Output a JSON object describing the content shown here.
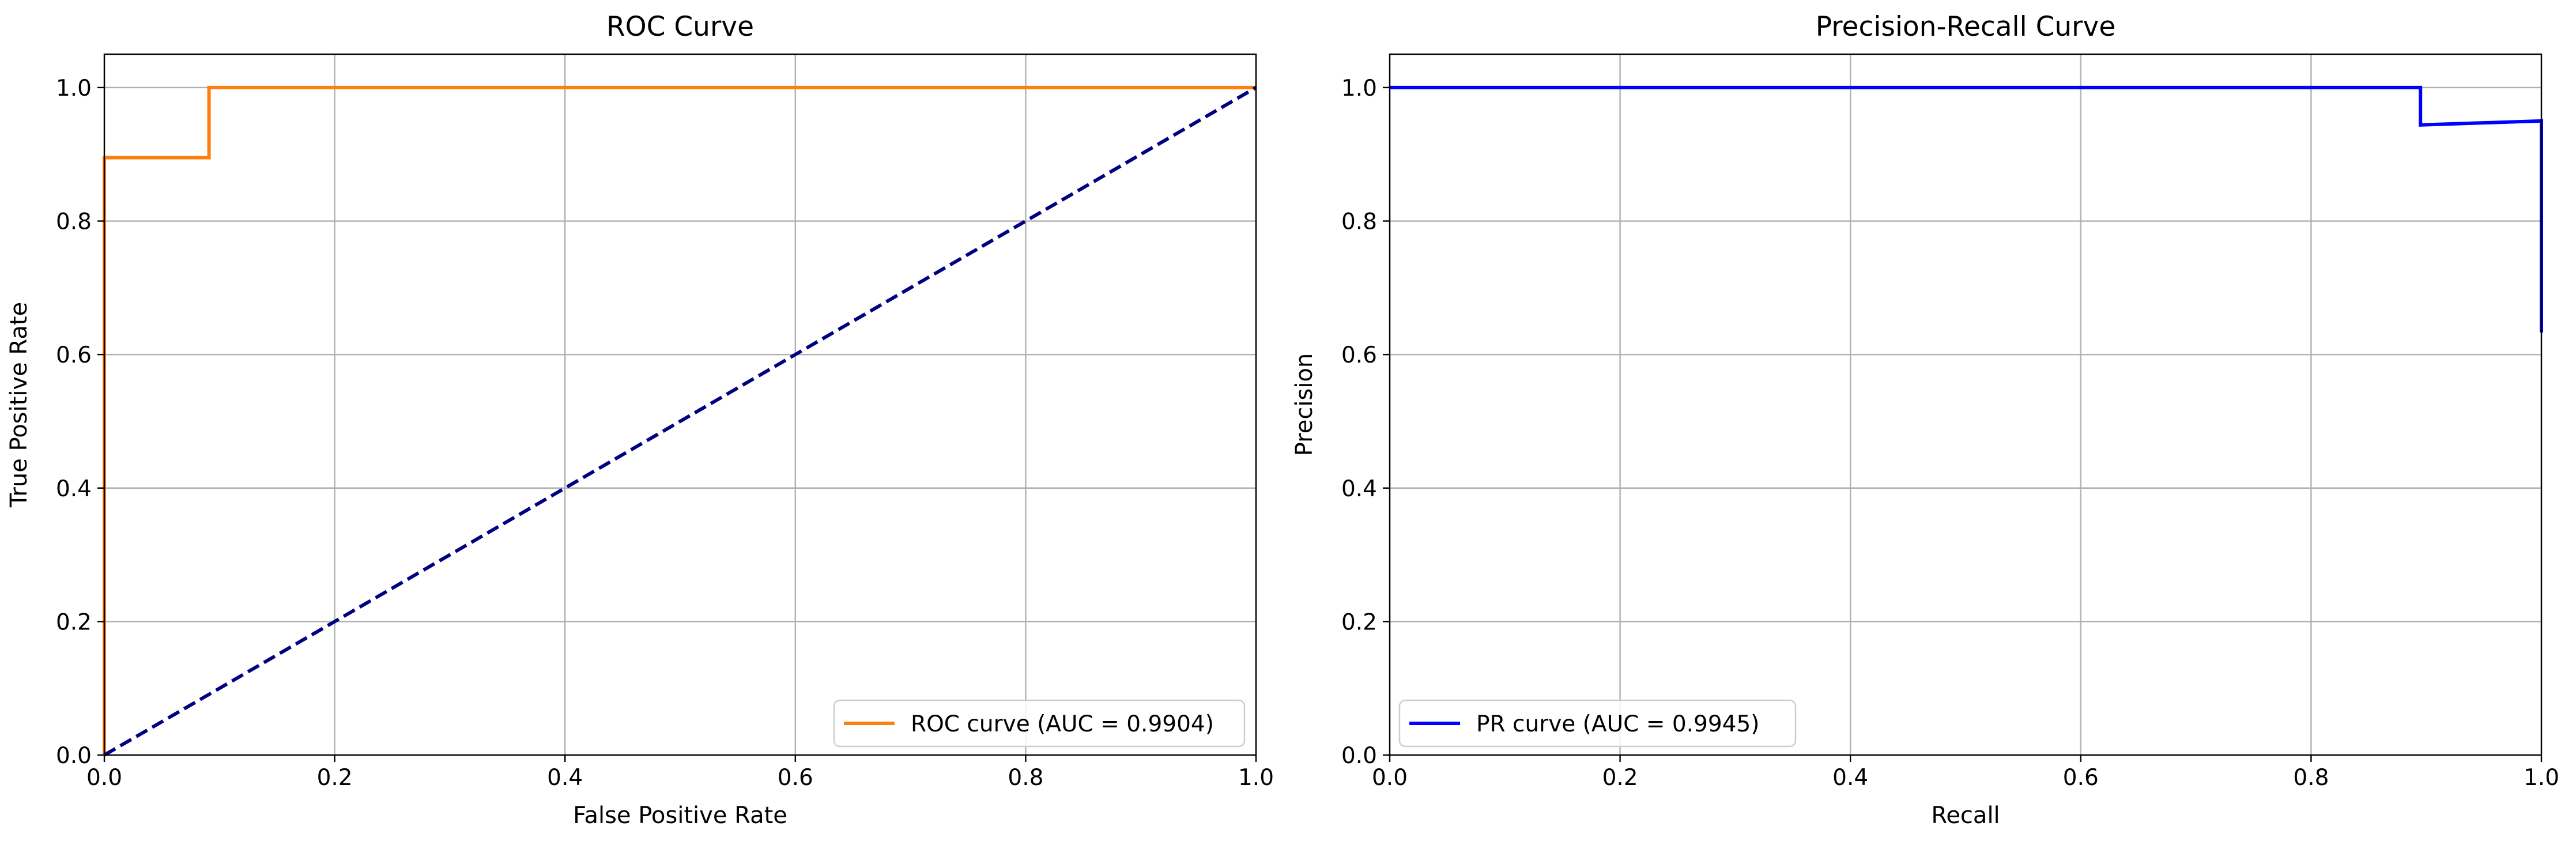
{
  "chart_data": [
    {
      "type": "line",
      "title": "ROC Curve",
      "xlabel": "False Positive Rate",
      "ylabel": "True Positive Rate",
      "xlim": [
        0.0,
        1.0
      ],
      "ylim": [
        0.0,
        1.05
      ],
      "xticks": [
        "0.0",
        "0.2",
        "0.4",
        "0.6",
        "0.8",
        "1.0"
      ],
      "yticks": [
        "0.0",
        "0.2",
        "0.4",
        "0.6",
        "0.8",
        "1.0"
      ],
      "grid": true,
      "legend_position": "lower right",
      "series": [
        {
          "name": "ROC curve (AUC = 0.9904)",
          "color": "#ff7f0e",
          "style": "solid",
          "x": [
            0.0,
            0.0,
            0.0909,
            0.0909,
            1.0
          ],
          "y": [
            0.0,
            0.895,
            0.895,
            1.0,
            1.0
          ]
        },
        {
          "name": "",
          "color": "#000080",
          "style": "dashed",
          "x": [
            0.0,
            1.0
          ],
          "y": [
            0.0,
            1.0
          ]
        }
      ]
    },
    {
      "type": "line",
      "title": "Precision-Recall Curve",
      "xlabel": "Recall",
      "ylabel": "Precision",
      "xlim": [
        0.0,
        1.0
      ],
      "ylim": [
        0.0,
        1.05
      ],
      "xticks": [
        "0.0",
        "0.2",
        "0.4",
        "0.6",
        "0.8",
        "1.0"
      ],
      "yticks": [
        "0.0",
        "0.2",
        "0.4",
        "0.6",
        "0.8",
        "1.0"
      ],
      "grid": true,
      "legend_position": "lower left",
      "series": [
        {
          "name": "PR curve (AUC = 0.9945)",
          "color": "#0000ff",
          "style": "solid",
          "x": [
            0.0,
            0.895,
            0.895,
            1.0,
            1.0
          ],
          "y": [
            1.0,
            1.0,
            0.944,
            0.95,
            0.633
          ]
        }
      ]
    }
  ]
}
